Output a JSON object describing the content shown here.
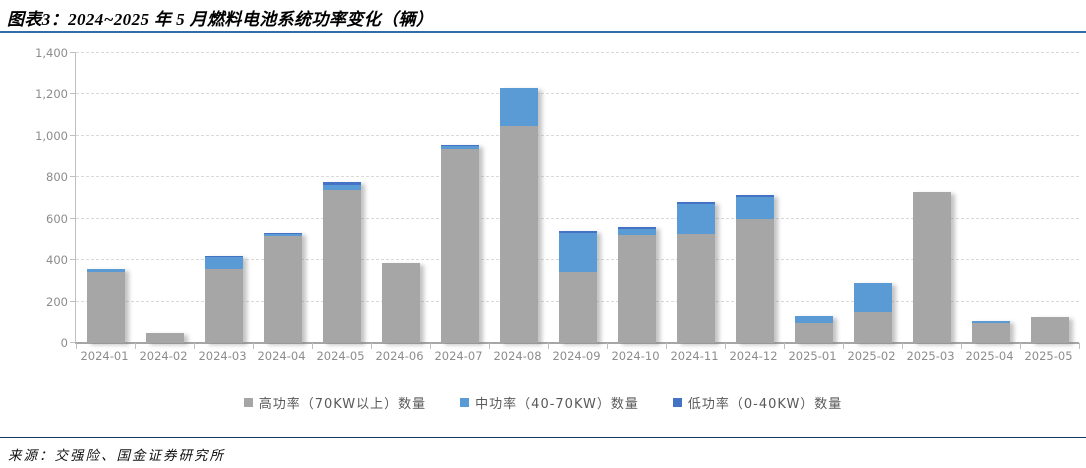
{
  "header": {
    "title": "图表3：2024~2025 年 5 月燃料电池系统功率变化（辆）"
  },
  "footer": {
    "source": "来源：交强险、国金证券研究所"
  },
  "colors": {
    "high": "#A6A6A6",
    "mid": "#5B9BD5",
    "low": "#4472C4",
    "grid": "#D9D9D9",
    "axis": "#BFBFBF",
    "baseline": "#A6A6A6",
    "tick_label": "#8C8C8C",
    "legend_text": "#595959",
    "title_rule": "#2E6DA8",
    "footer_rule": "#17375E"
  },
  "chart_data": {
    "type": "bar",
    "stacked": true,
    "title": "图表3：2024~2025 年 5 月燃料电池系统功率变化（辆）",
    "xlabel": "",
    "ylabel": "",
    "unit": "辆",
    "grid": "horizontal-dashed",
    "legend_position": "bottom-center",
    "ylim": [
      0,
      1400
    ],
    "yticks": [
      0,
      200,
      400,
      600,
      800,
      1000,
      1200,
      1400
    ],
    "ytick_labels": [
      "0",
      "200",
      "400",
      "600",
      "800",
      "1,000",
      "1,200",
      "1,400"
    ],
    "categories": [
      "2024-01",
      "2024-02",
      "2024-03",
      "2024-04",
      "2024-05",
      "2024-06",
      "2024-07",
      "2024-08",
      "2024-09",
      "2024-10",
      "2024-11",
      "2024-12",
      "2025-01",
      "2025-02",
      "2025-03",
      "2025-04",
      "2025-05"
    ],
    "series": [
      {
        "name": "高功率（70KW以上）数量",
        "color_key": "high",
        "values": [
          345,
          50,
          355,
          515,
          740,
          385,
          935,
          1050,
          345,
          520,
          525,
          600,
          95,
          150,
          730,
          95,
          125
        ]
      },
      {
        "name": "中功率（40-70KW）数量",
        "color_key": "mid",
        "values": [
          10,
          0,
          60,
          10,
          25,
          0,
          15,
          180,
          185,
          30,
          145,
          105,
          35,
          140,
          0,
          10,
          0
        ]
      },
      {
        "name": "低功率（0-40KW）数量",
        "color_key": "low",
        "values": [
          0,
          0,
          5,
          5,
          10,
          0,
          5,
          0,
          10,
          10,
          10,
          10,
          0,
          0,
          0,
          0,
          0
        ]
      }
    ]
  }
}
